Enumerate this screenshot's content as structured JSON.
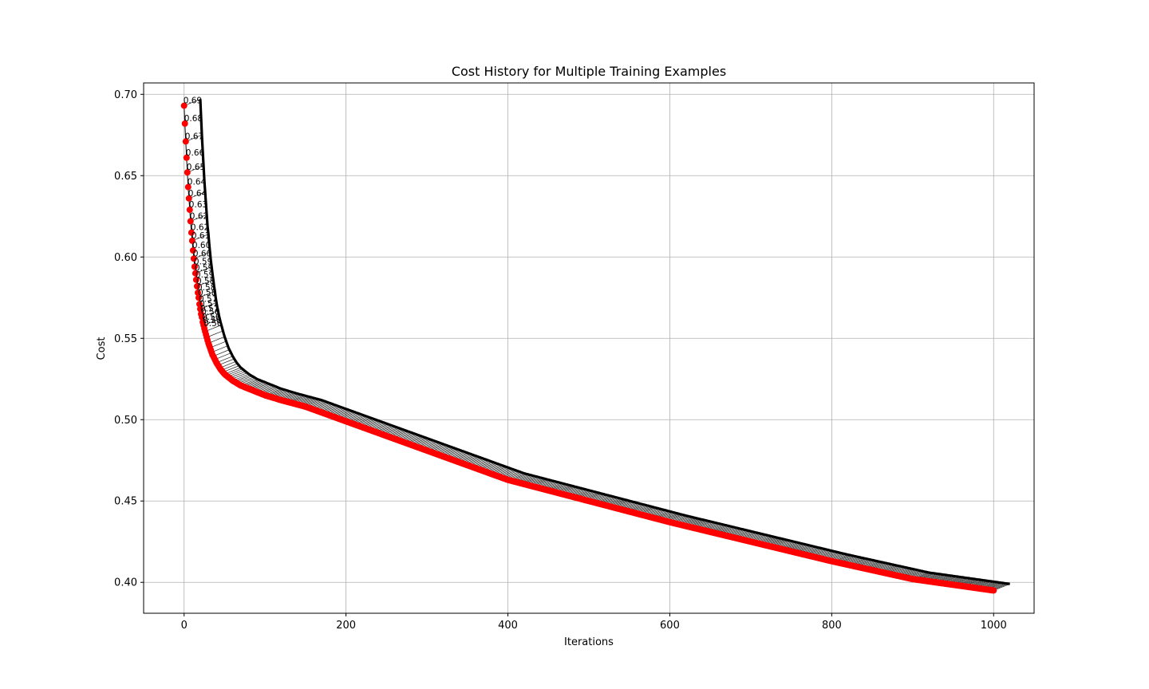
{
  "chart_data": {
    "type": "line",
    "title": "Cost History for Multiple Training Examples",
    "xlabel": "Iterations",
    "ylabel": "Cost",
    "xlim": [
      -50,
      1050
    ],
    "ylim": [
      0.381,
      0.707
    ],
    "xticks": [
      0,
      200,
      400,
      600,
      800,
      1000
    ],
    "yticks": [
      0.4,
      0.45,
      0.5,
      0.55,
      0.6,
      0.65,
      0.7
    ],
    "grid": true,
    "series": [
      {
        "marker": "circle",
        "color": "#ff0000",
        "line_color": "#000000",
        "x": [
          0,
          1,
          2,
          3,
          4,
          5,
          6,
          7,
          8,
          9,
          10,
          11,
          12,
          13,
          14,
          15,
          16,
          17,
          18,
          19,
          20,
          21,
          22,
          23,
          24,
          25,
          30,
          35,
          40,
          45,
          50,
          55,
          60,
          70,
          80,
          90,
          100,
          120,
          150,
          200,
          250,
          300,
          400,
          500,
          600,
          700,
          800,
          900,
          1000
        ],
        "values": [
          0.693,
          0.682,
          0.671,
          0.661,
          0.652,
          0.643,
          0.636,
          0.629,
          0.622,
          0.615,
          0.61,
          0.604,
          0.599,
          0.594,
          0.59,
          0.586,
          0.582,
          0.578,
          0.575,
          0.571,
          0.568,
          0.565,
          0.563,
          0.56,
          0.558,
          0.556,
          0.547,
          0.54,
          0.535,
          0.531,
          0.528,
          0.526,
          0.524,
          0.521,
          0.519,
          0.517,
          0.515,
          0.512,
          0.508,
          0.499,
          0.49,
          0.481,
          0.463,
          0.45,
          0.437,
          0.425,
          0.413,
          0.402,
          0.395
        ]
      }
    ],
    "data_labels": [
      "0.69",
      "0.68",
      "0.67",
      "0.66",
      "0.65",
      "0.64",
      "0.64",
      "0.63",
      "0.62",
      "0.62",
      "0.61",
      "0.60",
      "0.60",
      "0.59",
      "0.59",
      "0.59",
      "0.58",
      "0.58",
      "0.58",
      "0.57",
      "0.57",
      "0.57",
      "0.56",
      "0.56",
      "0.56",
      "0.56"
    ]
  }
}
